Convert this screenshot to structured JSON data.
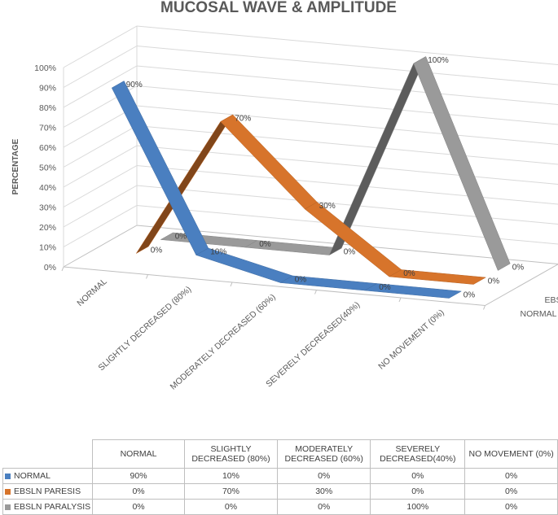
{
  "chart_data": {
    "type": "line",
    "variant": "3d-ribbon",
    "title": "MUCOSAL WAVE & AMPLITUDE",
    "ylabel": "PERCENTAGE",
    "ylim": [
      0,
      100
    ],
    "yticks": [
      "0%",
      "10%",
      "20%",
      "30%",
      "40%",
      "50%",
      "60%",
      "70%",
      "80%",
      "90%",
      "100%"
    ],
    "categories": [
      "NORMAL",
      "SLIGHTLY DECREASED (80%)",
      "MODERATELY DECREASED (60%)",
      "SEVERELY DECREASED(40%)",
      "NO MOVEMENT (0%)"
    ],
    "series": [
      {
        "name": "NORMAL",
        "color": "#4a7fc0",
        "values": [
          90,
          10,
          0,
          0,
          0
        ],
        "labels": [
          "90%",
          "10%",
          "0%",
          "0%",
          "0%"
        ]
      },
      {
        "name": "EBSLN PARESIS",
        "color": "#d7742b",
        "values": [
          0,
          70,
          30,
          0,
          0
        ],
        "labels": [
          "0%",
          "70%",
          "30%",
          "0%",
          "0%"
        ]
      },
      {
        "name": "EBSLN PARALYSIS",
        "color": "#9a9a9a",
        "values": [
          0,
          0,
          0,
          100,
          0
        ],
        "labels": [
          "0%",
          "0%",
          "0%",
          "100%",
          "0%"
        ]
      }
    ],
    "grid": true,
    "legend": "data-table"
  },
  "table": {
    "headers": [
      "NORMAL",
      "SLIGHTLY DECREASED (80%)",
      "MODERATELY DECREASED (60%)",
      "SEVERELY DECREASED(40%)",
      "NO MOVEMENT (0%)"
    ],
    "rows": [
      {
        "name": "NORMAL",
        "color": "#4a7fc0",
        "cells": [
          "90%",
          "10%",
          "0%",
          "0%",
          "0%"
        ]
      },
      {
        "name": "EBSLN PARESIS",
        "color": "#d7742b",
        "cells": [
          "0%",
          "70%",
          "30%",
          "0%",
          "0%"
        ]
      },
      {
        "name": "EBSLN PARALYSIS",
        "color": "#9a9a9a",
        "cells": [
          "0%",
          "0%",
          "0%",
          "100%",
          "0%"
        ]
      }
    ]
  }
}
